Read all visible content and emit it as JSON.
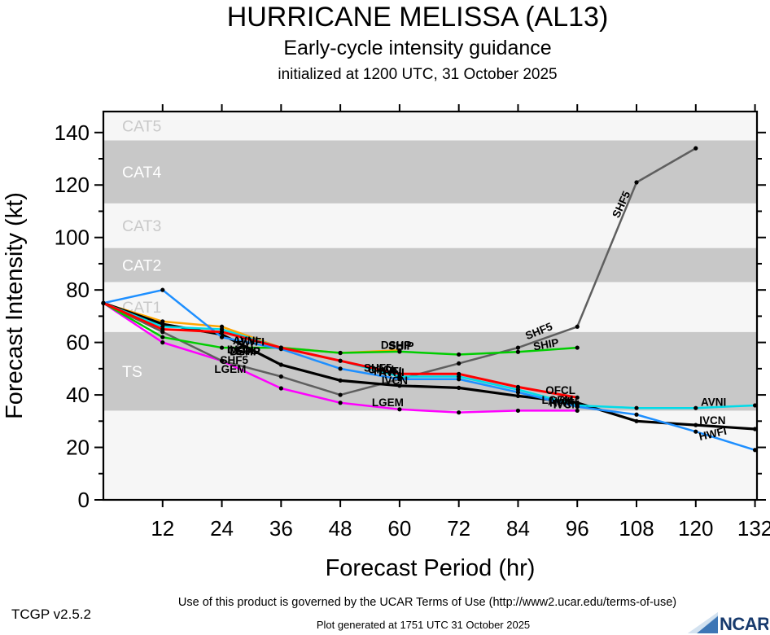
{
  "header": {
    "title": "HURRICANE MELISSA (AL13)",
    "subtitle": "Early-cycle intensity guidance",
    "initialization": "initialized at 1200 UTC, 31 October 2025"
  },
  "footer": {
    "version": "TCGP v2.5.2",
    "terms": "Use of this product is governed by the UCAR Terms of Use (http://www2.ucar.edu/terms-of-use)",
    "generated": "Plot generated at 1751 UTC   31 October 2025",
    "logo_text": "NCAR"
  },
  "chart_data": {
    "type": "line",
    "title": "HURRICANE MELISSA (AL13)",
    "subtitle": "Early-cycle intensity guidance",
    "initialized": "initialized at 1200 UTC, 31 October 2025",
    "xlabel": "Forecast Period (hr)",
    "ylabel": "Forecast Intensity (kt)",
    "xlim": [
      0,
      132.4
    ],
    "ylim": [
      0,
      148
    ],
    "xticks": [
      12,
      24,
      36,
      48,
      60,
      72,
      84,
      96,
      108,
      120,
      132
    ],
    "yticks": [
      0,
      20,
      40,
      60,
      80,
      100,
      120,
      140
    ],
    "yticks_minor": [
      10,
      30,
      50,
      70,
      90,
      110,
      130
    ],
    "grid": false,
    "legend_position": "inline-labels",
    "band_colors": {
      "gray": "#c8c8c8",
      "light": "#f6f6f6",
      "label_on_gray": "#ffffff",
      "label_on_light": "#c9c9c9"
    },
    "bands": [
      {
        "label": "",
        "from": 0,
        "to": 34,
        "shade": "light"
      },
      {
        "label": "TS",
        "from": 34,
        "to": 64,
        "shade": "gray"
      },
      {
        "label": "CAT1",
        "from": 64,
        "to": 83,
        "shade": "light"
      },
      {
        "label": "CAT2",
        "from": 83,
        "to": 96,
        "shade": "gray"
      },
      {
        "label": "CAT3",
        "from": 96,
        "to": 113,
        "shade": "light"
      },
      {
        "label": "CAT4",
        "from": 113,
        "to": 137,
        "shade": "gray"
      },
      {
        "label": "CAT5",
        "from": 137,
        "to": 148,
        "shade": "light"
      }
    ],
    "series": [
      {
        "name": "LGEM",
        "color": "#ff00ff",
        "width": 2.5,
        "hours": [
          0,
          12,
          24,
          36,
          48,
          60,
          72,
          84,
          96
        ],
        "values": [
          75,
          60,
          53,
          42.5,
          37,
          34.5,
          33.3,
          34,
          34
        ]
      },
      {
        "name": "SHF5",
        "color": "#5f5f5f",
        "width": 2.5,
        "hours": [
          0,
          12,
          24,
          36,
          48,
          60,
          72,
          84,
          96,
          108,
          120
        ],
        "values": [
          75,
          64,
          53,
          47,
          40,
          46,
          52,
          58,
          66,
          121,
          134
        ]
      },
      {
        "name": "DSHP",
        "color": "#ffa500",
        "width": 2.5,
        "hours": [
          0,
          12,
          24,
          36,
          48,
          60
        ],
        "values": [
          75,
          68,
          66,
          58,
          56,
          57
        ]
      },
      {
        "name": "SHIP",
        "color": "#00cd00",
        "width": 2.5,
        "hours": [
          0,
          12,
          24,
          36,
          48,
          60,
          72,
          84,
          96
        ],
        "values": [
          75,
          62,
          58,
          58,
          56,
          56.5,
          55.4,
          56.4,
          58
        ]
      },
      {
        "name": "IVCN",
        "color": "#000000",
        "width": 3.2,
        "hours": [
          0,
          12,
          24,
          36,
          48,
          60,
          72,
          84,
          96,
          108,
          120,
          132
        ],
        "values": [
          75,
          67,
          63,
          51.5,
          45.5,
          43.5,
          42.7,
          39.6,
          37,
          30,
          28.5,
          27
        ]
      },
      {
        "name": "AVNI",
        "color": "#00dbe8",
        "width": 2.5,
        "hours": [
          0,
          12,
          24,
          36,
          48,
          60,
          72,
          84,
          96,
          108,
          120,
          132
        ],
        "values": [
          75,
          66,
          65,
          58,
          53,
          47,
          47,
          42,
          36,
          35,
          35,
          36
        ]
      },
      {
        "name": "HWFI",
        "color": "#1e8fff",
        "width": 2.5,
        "hours": [
          0,
          12,
          24,
          36,
          48,
          60,
          72,
          84,
          96,
          108,
          120,
          132
        ],
        "values": [
          75,
          80,
          62,
          57.5,
          50,
          46,
          46,
          41,
          35.5,
          32.5,
          26,
          19
        ]
      },
      {
        "name": "OFCL",
        "color": "#ff0000",
        "width": 3,
        "hours": [
          0,
          12,
          24,
          36,
          48,
          60,
          72,
          84,
          96
        ],
        "values": [
          75,
          65,
          64,
          58,
          53,
          48,
          48,
          43,
          39
        ]
      }
    ],
    "annotations": [
      {
        "text": "AVNI",
        "h": 28.8,
        "v": 59.3,
        "rot": 0
      },
      {
        "text": "HWFI",
        "h": 29.8,
        "v": 58.8,
        "rot": 0
      },
      {
        "text": "IVCN",
        "h": 27.7,
        "v": 55.9,
        "rot": 0
      },
      {
        "text": "DSHP",
        "h": 28.7,
        "v": 55.0,
        "rot": 0
      },
      {
        "text": "OFCL",
        "h": 28.2,
        "v": 55.6,
        "rot": 0
      },
      {
        "text": "SHIP",
        "h": 29.2,
        "v": 55.2,
        "rot": 0
      },
      {
        "text": "SHF5",
        "h": 26.5,
        "v": 51.8,
        "rot": 0
      },
      {
        "text": "LGEM",
        "h": 25.7,
        "v": 48.4,
        "rot": 0
      },
      {
        "text": "DSHP",
        "h": 59.3,
        "v": 57.6,
        "rot": 0
      },
      {
        "text": "SHIP",
        "h": 60.3,
        "v": 57.3,
        "rot": 0
      },
      {
        "text": "SHF5",
        "h": 55.6,
        "v": 48.9,
        "rot": 0
      },
      {
        "text": "OFCL",
        "h": 56.6,
        "v": 48.2,
        "rot": 0
      },
      {
        "text": "HWFI",
        "h": 57.6,
        "v": 47.6,
        "rot": 0
      },
      {
        "text": "AVNI",
        "h": 58.4,
        "v": 47.1,
        "rot": 0
      },
      {
        "text": "IVCN",
        "h": 59.0,
        "v": 44.0,
        "rot": 0
      },
      {
        "text": "LGEM",
        "h": 57.6,
        "v": 35.7,
        "rot": 0
      },
      {
        "text": "SHF5",
        "h": 88.5,
        "v": 63.0,
        "rot": -22
      },
      {
        "text": "SHIP",
        "h": 89.8,
        "v": 57.8,
        "rot": -10
      },
      {
        "text": "OFCL",
        "h": 92.6,
        "v": 40.4,
        "rot": 0
      },
      {
        "text": "LGEM",
        "h": 92.0,
        "v": 36.6,
        "rot": 0
      },
      {
        "text": "AVNI",
        "h": 92.6,
        "v": 36.1,
        "rot": 0
      },
      {
        "text": "HWFI",
        "h": 93.2,
        "v": 35.5,
        "rot": 0
      },
      {
        "text": "IVCN",
        "h": 93.8,
        "v": 34.9,
        "rot": 0
      },
      {
        "text": "SHF5",
        "h": 105.6,
        "v": 112,
        "rot": -65
      },
      {
        "text": "AVNI",
        "h": 123.6,
        "v": 35.9,
        "rot": 0
      },
      {
        "text": "IVCN",
        "h": 123.4,
        "v": 28.8,
        "rot": 0
      },
      {
        "text": "HWFI",
        "h": 123.6,
        "v": 23.8,
        "rot": -13
      }
    ]
  }
}
